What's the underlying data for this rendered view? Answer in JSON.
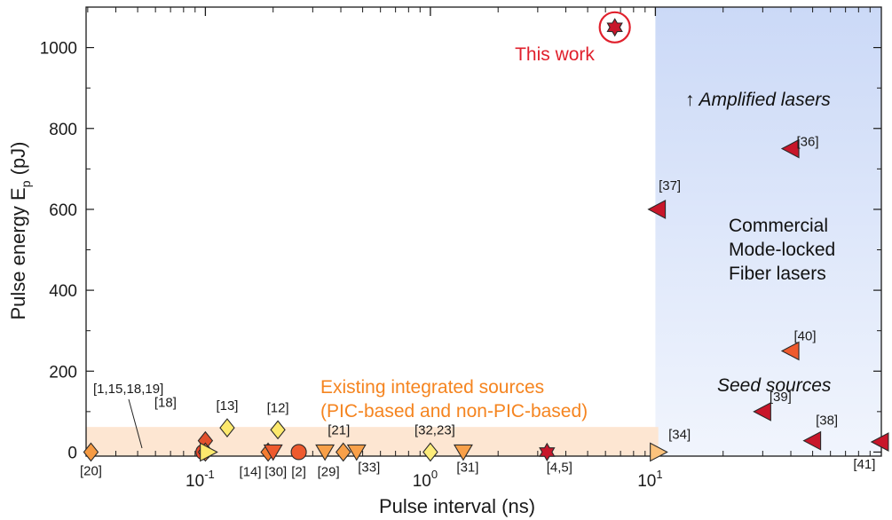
{
  "chart_data": {
    "type": "scatter",
    "xlabel": "Pulse interval (ns)",
    "ylabel": "Pulse energy E",
    "ylabel_sub": "p",
    "ylabel_unit": " (pJ)",
    "xscale": "log",
    "xlim": [
      0.0295,
      101
    ],
    "ylim": [
      -10,
      1100
    ],
    "x_ticks": [
      {
        "value": 0.1,
        "base": "10",
        "exp": "-1"
      },
      {
        "value": 1,
        "base": "10",
        "exp": "0"
      },
      {
        "value": 10,
        "base": "10",
        "exp": "1"
      }
    ],
    "y_ticks": [
      0,
      200,
      400,
      600,
      800,
      1000
    ],
    "regions": [
      {
        "name": "fiber-laser-region",
        "x_from": 10,
        "x_to": 101,
        "y_from": -10,
        "y_to": 1100,
        "color": "#cfdcf9"
      },
      {
        "name": "integrated-region",
        "x_from": 0.0295,
        "x_to": 10.3,
        "y_from": -10,
        "y_to": 62,
        "color": "#fde6d2"
      }
    ],
    "points": [
      {
        "x": 0.031,
        "y": 0,
        "marker": "diamond",
        "color": "#f59a43",
        "label": "[20]",
        "lx": 0,
        "ly": 26
      },
      {
        "x": 0.098,
        "y": 0,
        "marker": "circle",
        "color": "#e8462a",
        "label": "",
        "lx": 0,
        "ly": 0
      },
      {
        "x": 0.1,
        "y": 28,
        "marker": "diamond",
        "color": "#e2512c",
        "label": "[18]",
        "lx": -45,
        "ly": -38
      },
      {
        "x": 0.1,
        "y": 0,
        "marker": "diamond",
        "color": "#f47c30",
        "label": "",
        "lx": 0,
        "ly": 0
      },
      {
        "x": 0.103,
        "y": 0,
        "marker": "triangle-right",
        "color": "#fde96d",
        "label": "",
        "lx": 0,
        "ly": 0
      },
      {
        "x": 0.125,
        "y": 60,
        "marker": "diamond",
        "color": "#fde96d",
        "label": "[13]",
        "lx": 0,
        "ly": -20
      },
      {
        "x": 0.19,
        "y": 0,
        "marker": "diamond",
        "color": "#f47c30",
        "label": "[14]",
        "lx": -20,
        "ly": 27
      },
      {
        "x": 0.2,
        "y": 0,
        "marker": "triangle-down",
        "color": "#ee5a2e",
        "label": "[30]",
        "lx": 3,
        "ly": 27
      },
      {
        "x": 0.21,
        "y": 55,
        "marker": "diamond",
        "color": "#fde96d",
        "label": "[12]",
        "lx": 0,
        "ly": -20
      },
      {
        "x": 0.26,
        "y": 0,
        "marker": "circle",
        "color": "#ee5a2e",
        "label": "[2]",
        "lx": 0,
        "ly": 27
      },
      {
        "x": 0.34,
        "y": 0,
        "marker": "triangle-down",
        "color": "#f8a049",
        "label": "[29]",
        "lx": 4,
        "ly": 27
      },
      {
        "x": 0.41,
        "y": 0,
        "marker": "diamond",
        "color": "#f8a049",
        "label": "[21]",
        "lx": -5,
        "ly": -20
      },
      {
        "x": 0.47,
        "y": 0,
        "marker": "triangle-down",
        "color": "#f8a049",
        "label": "[33]",
        "lx": 14,
        "ly": 22
      },
      {
        "x": 1.0,
        "y": 0,
        "marker": "diamond",
        "color": "#fdec7a",
        "label": "[32,23]",
        "lx": 5,
        "ly": -20
      },
      {
        "x": 1.4,
        "y": 0,
        "marker": "triangle-down",
        "color": "#f8a049",
        "label": "[31]",
        "lx": 5,
        "ly": 22
      },
      {
        "x": 3.3,
        "y": 0,
        "marker": "hexagram",
        "color": "#c8162a",
        "label": "[4,5]",
        "lx": 14,
        "ly": 22
      },
      {
        "x": 6.6,
        "y": 1050,
        "marker": "hexagram",
        "color": "#c8162a",
        "label": "",
        "lx": 0,
        "ly": 0
      },
      {
        "x": 10.3,
        "y": 0,
        "marker": "triangle-right",
        "color": "#fbc27c",
        "label": "[34]",
        "lx": 24,
        "ly": -15
      },
      {
        "x": 10.2,
        "y": 600,
        "marker": "triangle-left",
        "color": "#c8162a",
        "label": "[37]",
        "lx": 14,
        "ly": -22
      },
      {
        "x": 40,
        "y": 750,
        "marker": "triangle-left",
        "color": "#c8162a",
        "label": "[36]",
        "lx": 19,
        "ly": -3
      },
      {
        "x": 40,
        "y": 250,
        "marker": "triangle-left",
        "color": "#ee5a2e",
        "label": "[40]",
        "lx": 16,
        "ly": -12
      },
      {
        "x": 30,
        "y": 100,
        "marker": "triangle-left",
        "color": "#c8162a",
        "label": "[39]",
        "lx": 20,
        "ly": -12
      },
      {
        "x": 50,
        "y": 28,
        "marker": "triangle-left",
        "color": "#c8162a",
        "label": "[38]",
        "lx": 16,
        "ly": -18
      },
      {
        "x": 100,
        "y": 25,
        "marker": "triangle-left",
        "color": "#c8162a",
        "label": "[41]",
        "lx": -18,
        "ly": 30
      }
    ],
    "annotations": {
      "this_work": "This work",
      "this_work_color": "#e0202c",
      "amplified": "↑ Amplified lasers",
      "commercial_1": "Commercial",
      "commercial_2": "Mode-locked",
      "commercial_3": "Fiber lasers",
      "seed": "Seed sources",
      "integrated_1": "Existing integrated sources",
      "integrated_2": "(PIC-based and non-PIC-based)",
      "integrated_color": "#f5841f",
      "callout": "[1,15,18,19]"
    }
  }
}
